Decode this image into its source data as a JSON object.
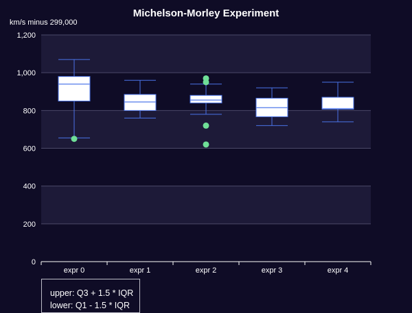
{
  "chart_data": {
    "type": "boxplot",
    "title": "Michelson-Morley Experiment",
    "ylabel": "km/s minus 299,000",
    "xlabel": "",
    "categories": [
      "expr 0",
      "expr 1",
      "expr 2",
      "expr 3",
      "expr 4"
    ],
    "yticks": [
      "0",
      "200",
      "400",
      "600",
      "800",
      "1,000",
      "1,200"
    ],
    "ylim": [
      0,
      1200
    ],
    "grid": true,
    "boxes": [
      {
        "low": 655,
        "q1": 850,
        "median": 940,
        "q3": 980,
        "high": 1070
      },
      {
        "low": 760,
        "q1": 800,
        "median": 845,
        "q3": 885,
        "high": 960
      },
      {
        "low": 780,
        "q1": 840,
        "median": 855,
        "q3": 880,
        "high": 940
      },
      {
        "low": 720,
        "q1": 767,
        "median": 815,
        "q3": 865,
        "high": 920
      },
      {
        "low": 740,
        "q1": 807,
        "median": 810,
        "q3": 870,
        "high": 950
      }
    ],
    "outliers": [
      {
        "category": 0,
        "value": 650
      },
      {
        "category": 2,
        "value": 620
      },
      {
        "category": 2,
        "value": 720
      },
      {
        "category": 2,
        "value": 950
      },
      {
        "category": 2,
        "value": 970
      }
    ],
    "colors": {
      "background": "#0f0c26",
      "plot_band": "#1d1a38",
      "box_fill": "#ffffff",
      "box_stroke": "#4a73e8",
      "whisker": "#4a73e8",
      "median": "#6e8fee",
      "outlier": "#6fdf97",
      "grid": "#4b4969",
      "text": "#ffffff"
    }
  },
  "legend_note": {
    "line1": "upper: Q3 + 1.5 * IQR",
    "line2": "lower: Q1 - 1.5 * IQR"
  }
}
